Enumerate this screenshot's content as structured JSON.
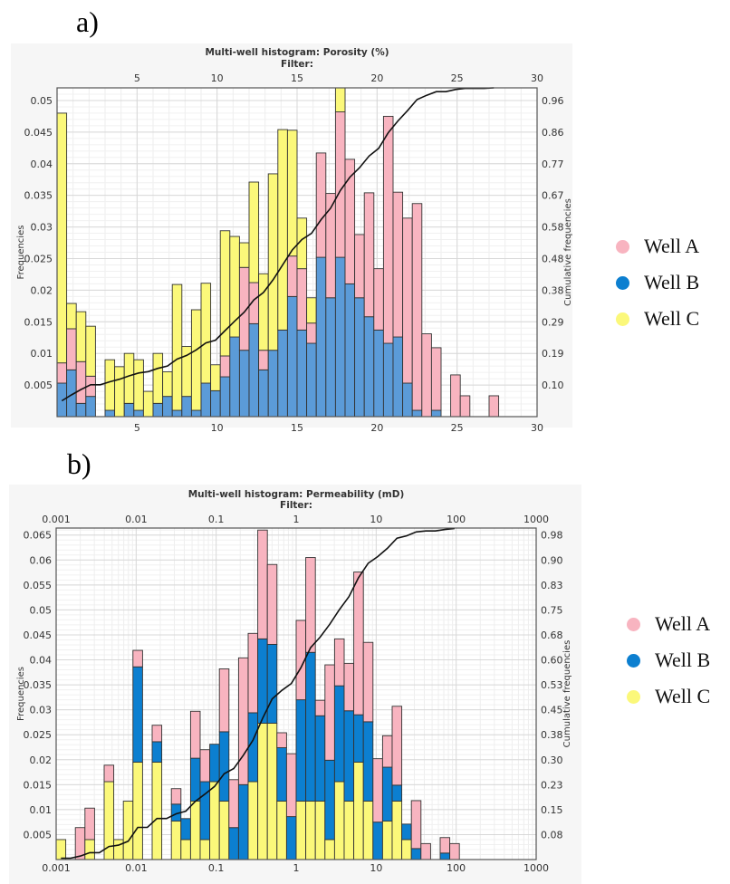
{
  "panels": {
    "a": "a)",
    "b": "b)"
  },
  "legend": [
    {
      "label": "Well A",
      "color": "#f8b4c0"
    },
    {
      "label": "Well B",
      "color": "#0c7fd0"
    },
    {
      "label": "Well C",
      "color": "#fbf87a"
    }
  ],
  "chart_data": [
    {
      "type": "bar",
      "stacked": true,
      "title": "Multi-well histogram: Porosity (%)",
      "subtitle": "Filter:",
      "xlabel": "",
      "ylabel": "Frequencies",
      "y2label": "Cumulative frequencies",
      "xscale": "linear",
      "xlim": [
        0,
        30
      ],
      "ylim": [
        0,
        0.052
      ],
      "bin_start": 0,
      "bin_width": 0.6,
      "x_ticks": [
        "5",
        "10",
        "15",
        "20",
        "25",
        "30"
      ],
      "x_tick_values": [
        5,
        10,
        15,
        20,
        25,
        30
      ],
      "y_ticks": [
        "0.005",
        "0.01",
        "0.015",
        "0.02",
        "0.025",
        "0.03",
        "0.035",
        "0.04",
        "0.045",
        "0.05"
      ],
      "y_tick_values": [
        0.005,
        0.01,
        0.015,
        0.02,
        0.025,
        0.03,
        0.035,
        0.04,
        0.045,
        0.05
      ],
      "y2_ticks": [
        "0.10",
        "0.19",
        "0.29",
        "0.38",
        "0.48",
        "0.58",
        "0.67",
        "0.77",
        "0.86",
        "0.96"
      ],
      "grid": true,
      "legend_position": "right",
      "series": [
        {
          "name": "Well B",
          "color": "#5b9bd8",
          "values": [
            0.0053,
            0.0074,
            0.0021,
            0.0032,
            0,
            0.001,
            0,
            0.0021,
            0.001,
            0,
            0.0021,
            0.0032,
            0.001,
            0.0032,
            0.001,
            0.0053,
            0.0041,
            0.0063,
            0.0126,
            0.0105,
            0.0147,
            0.0074,
            0.0105,
            0.0137,
            0.019,
            0.0137,
            0.0116,
            0.0252,
            0.0188,
            0.0252,
            0.021,
            0.0188,
            0.0158,
            0.0137,
            0.0116,
            0.0126,
            0.0053,
            0.001,
            0,
            0.001,
            0,
            0,
            0,
            0,
            0,
            0
          ]
        },
        {
          "name": "Well A",
          "color": "#f8b4c0",
          "values": [
            0.0032,
            0.0065,
            0.0066,
            0.0032,
            0,
            0,
            0,
            0,
            0,
            0,
            0,
            0,
            0,
            0,
            0,
            0,
            0,
            0.0033,
            0,
            0.0131,
            0.0065,
            0.0031,
            0,
            0,
            0.0064,
            0.0097,
            0.0032,
            0.0165,
            0.0165,
            0.023,
            0.0197,
            0.01,
            0.0196,
            0.0097,
            0.0359,
            0.0229,
            0.0261,
            0.0327,
            0.0131,
            0.0099,
            0,
            0.0066,
            0.0033,
            0,
            0,
            0.0033
          ]
        },
        {
          "name": "Well C",
          "color": "#fbf87a",
          "values": [
            0.0395,
            0.004,
            0.0079,
            0.0079,
            0,
            0.008,
            0.0079,
            0.0079,
            0.008,
            0.004,
            0.0079,
            0.0039,
            0.0199,
            0.0079,
            0.0159,
            0.0158,
            0.0041,
            0.0198,
            0.0159,
            0.0039,
            0.0159,
            0.0121,
            0.0279,
            0.0317,
            0.0199,
            0.008,
            0.004,
            0,
            0,
            0.0048,
            0,
            0,
            0,
            0,
            0,
            0,
            0,
            0,
            0,
            0,
            0,
            0,
            0,
            0,
            0,
            0
          ]
        }
      ]
    },
    {
      "type": "bar",
      "stacked": true,
      "title": "Multi-well histogram: Permeability (mD)",
      "subtitle": "Filter:",
      "xlabel": "",
      "ylabel": "Frequencies",
      "y2label": "Cumulative frequencies",
      "xscale": "log",
      "xlim": [
        0.001,
        1000
      ],
      "ylim": [
        0,
        0.0664
      ],
      "bin_start_log10": -3,
      "bin_width_log10": 0.12,
      "x_ticks": [
        "0.001",
        "0.01",
        "0.1",
        "1",
        "10",
        "100",
        "1000"
      ],
      "x_tick_values": [
        0.001,
        0.01,
        0.1,
        1,
        10,
        100,
        1000
      ],
      "y_ticks": [
        "0.005",
        "0.01",
        "0.015",
        "0.02",
        "0.025",
        "0.03",
        "0.035",
        "0.04",
        "0.045",
        "0.05",
        "0.055",
        "0.06",
        "0.065"
      ],
      "y_tick_values": [
        0.005,
        0.01,
        0.015,
        0.02,
        0.025,
        0.03,
        0.035,
        0.04,
        0.045,
        0.05,
        0.055,
        0.06,
        0.065
      ],
      "y2_ticks": [
        "0.08",
        "0.15",
        "0.23",
        "0.30",
        "0.38",
        "0.45",
        "0.53",
        "0.60",
        "0.68",
        "0.75",
        "0.83",
        "0.90",
        "0.98"
      ],
      "grid": true,
      "legend_position": "right",
      "series": [
        {
          "name": "Well C",
          "color": "#fbf87a",
          "values": [
            0.004,
            0,
            0,
            0.004,
            0,
            0.0156,
            0.004,
            0.0117,
            0.0195,
            0,
            0.0195,
            0,
            0.0077,
            0.004,
            0.0117,
            0.004,
            0.0156,
            0.0117,
            0,
            0,
            0.0156,
            0.0273,
            0.0273,
            0.0117,
            0,
            0.0117,
            0.0117,
            0.0117,
            0.004,
            0.0156,
            0.0117,
            0.0195,
            0.0117,
            0,
            0.0077,
            0.0117,
            0.004,
            0,
            0,
            0,
            0,
            0
          ]
        },
        {
          "name": "Well B",
          "color": "#0c7fd0",
          "values": [
            0,
            0,
            0,
            0,
            0,
            0,
            0,
            0,
            0.0191,
            0,
            0.0041,
            0,
            0.0034,
            0.0042,
            0.0086,
            0.0116,
            0.0075,
            0.0139,
            0.0064,
            0.015,
            0.0138,
            0.0169,
            0.0158,
            0.0107,
            0.0086,
            0.0203,
            0.0298,
            0.0171,
            0.0159,
            0.0192,
            0.0181,
            0.0095,
            0.0159,
            0.0075,
            0.0108,
            0.0032,
            0.0031,
            0.0022,
            0,
            0,
            0.0013,
            0
          ]
        },
        {
          "name": "Well A",
          "color": "#f8b4c0",
          "values": [
            0,
            0,
            0.0064,
            0.0063,
            0,
            0.0033,
            0,
            0,
            0.0033,
            0,
            0.0033,
            0,
            0.0031,
            0,
            0.0094,
            0.0064,
            0,
            0.0126,
            0.0096,
            0.0254,
            0.0159,
            0.0218,
            0.016,
            0.003,
            0.0126,
            0.0159,
            0.019,
            0.0031,
            0.0191,
            0.0094,
            0.0095,
            0.0286,
            0.0159,
            0.0127,
            0.0063,
            0.0158,
            0,
            0.0096,
            0.0032,
            0,
            0.0031,
            0.0032
          ]
        }
      ]
    }
  ]
}
